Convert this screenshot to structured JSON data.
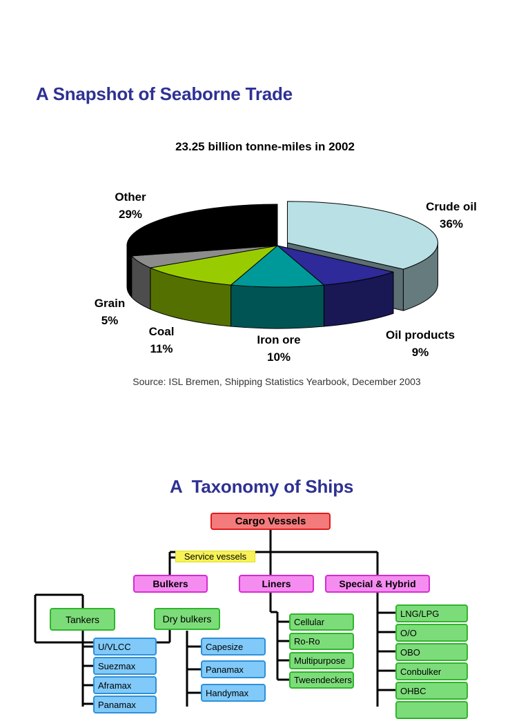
{
  "page": {
    "snapshot_title": "A Snapshot of Seaborne Trade",
    "taxonomy_title": "A  Taxonomy of Ships"
  },
  "chart_data": {
    "type": "pie",
    "title": "23.25 billion tonne-miles in 2002",
    "source": "Source: ISL Bremen, Shipping Statistics Yearbook, December 2003",
    "slices": [
      {
        "label": "Crude oil",
        "value_label": "36%",
        "value": 36,
        "color": "#b8e0e5"
      },
      {
        "label": "Oil products",
        "value_label": "9%",
        "value": 9,
        "color": "#2e2a99"
      },
      {
        "label": "Iron ore",
        "value_label": "10%",
        "value": 10,
        "color": "#009999"
      },
      {
        "label": "Coal",
        "value_label": "11%",
        "value": 11,
        "color": "#99cc00"
      },
      {
        "label": "Grain",
        "value_label": "5%",
        "value": 5,
        "color": "#8c8c8c"
      },
      {
        "label": "Other",
        "value_label": "29%",
        "value": 29,
        "color": "#000000"
      }
    ]
  },
  "taxonomy": {
    "root": "Cargo Vessels",
    "service": "Service vessels",
    "categories": [
      "Bulkers",
      "Liners",
      "Special & Hybrid"
    ],
    "bulker_groups": [
      "Tankers",
      "Dry bulkers"
    ],
    "tankers": [
      "U/VLCC",
      "Suezmax",
      "Aframax",
      "Panamax"
    ],
    "dry_bulkers": [
      "Capesize",
      "Panamax",
      "Handymax"
    ],
    "liners": [
      "Cellular",
      "Ro-Ro",
      "Multipurpose",
      "Tweendeckers"
    ],
    "special": [
      "LNG/LPG",
      "O/O",
      "OBO",
      "Conbulker",
      "OHBC",
      ""
    ]
  }
}
